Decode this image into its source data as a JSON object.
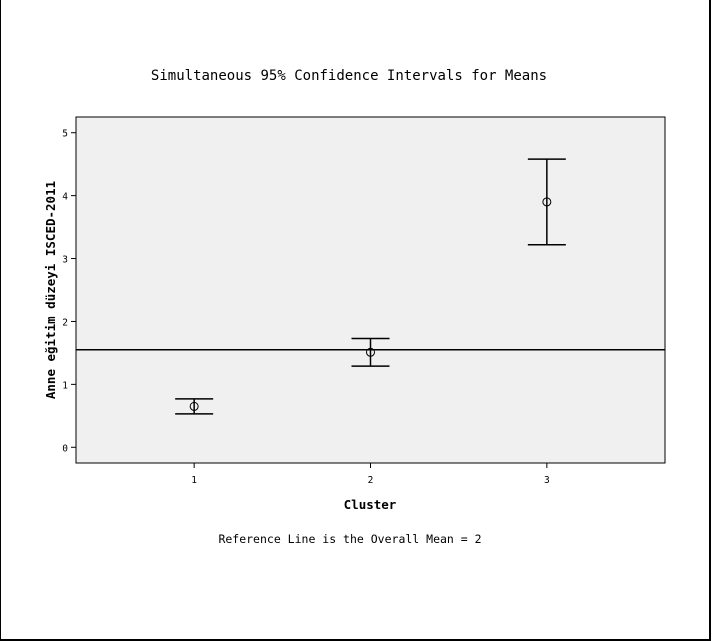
{
  "chart_data": {
    "type": "errorbar",
    "title": "Simultaneous 95% Confidence Intervals for Means",
    "xlabel": "Cluster",
    "ylabel": "Anne eğitim düzeyi ISCED-2011",
    "footnote": "Reference Line is the Overall Mean = 2",
    "x_ticks": [
      "1",
      "2",
      "3"
    ],
    "y_ticks": [
      "0",
      "1",
      "2",
      "3",
      "4",
      "5"
    ],
    "xlim": [
      0.33,
      3.67
    ],
    "ylim": [
      -0.25,
      5.25
    ],
    "grid": false,
    "reference_line": 1.55,
    "points": [
      {
        "x": 1,
        "mean": 0.65,
        "lower": 0.53,
        "upper": 0.77
      },
      {
        "x": 2,
        "mean": 1.51,
        "lower": 1.29,
        "upper": 1.73
      },
      {
        "x": 3,
        "mean": 3.9,
        "lower": 3.22,
        "upper": 4.58
      }
    ],
    "colors": {
      "plot_bg": "#f0f0f0",
      "marks": "#000000"
    }
  }
}
